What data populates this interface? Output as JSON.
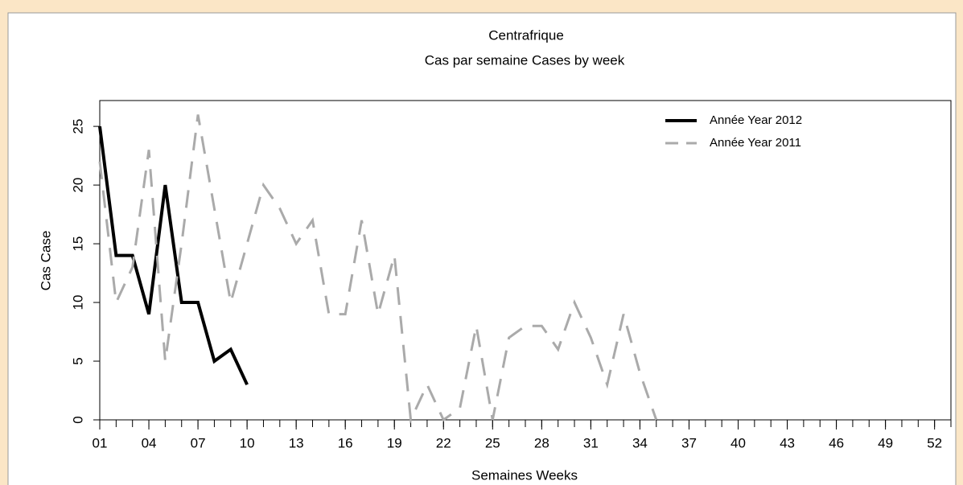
{
  "chart_data": {
    "type": "line",
    "title": "Centrafrique",
    "subtitle": "Cas par semaine Cases by week",
    "x_label": "Semaines Weeks",
    "y_label": "Cas Case",
    "x": [
      1,
      2,
      3,
      4,
      5,
      6,
      7,
      8,
      9,
      10,
      11,
      12,
      13,
      14,
      15,
      16,
      17,
      18,
      19,
      20,
      21,
      22,
      23,
      24,
      25,
      26,
      27,
      28,
      29,
      30,
      31,
      32,
      33,
      34,
      35
    ],
    "series": [
      {
        "name": "Année Year 2012",
        "color": "#000000",
        "dash": "solid",
        "values": [
          25,
          14,
          14,
          9,
          20,
          10,
          10,
          5,
          6,
          3,
          null,
          null,
          null,
          null,
          null,
          null,
          null,
          null,
          null,
          null,
          null,
          null,
          null,
          null,
          null,
          null,
          null,
          null,
          null,
          null,
          null,
          null,
          null,
          null,
          null
        ]
      },
      {
        "name": "Année Year 2011",
        "color": "#aaaaaa",
        "dash": "dashed",
        "values": [
          22,
          10,
          13,
          23,
          5,
          15,
          26,
          18,
          10,
          15,
          20,
          18,
          15,
          17,
          9,
          9,
          17,
          9,
          14,
          0,
          3,
          0,
          1,
          8,
          0,
          7,
          8,
          8,
          6,
          10,
          7,
          3,
          9,
          4,
          0
        ]
      }
    ],
    "xlim": [
      1,
      53
    ],
    "ylim": [
      0,
      27.2
    ],
    "xticks": [
      {
        "value": 1,
        "label": "01"
      },
      {
        "value": 4,
        "label": "04"
      },
      {
        "value": 7,
        "label": "07"
      },
      10,
      13,
      16,
      19,
      22,
      25,
      28,
      31,
      34,
      37,
      40,
      43,
      46,
      49,
      52
    ],
    "xminor_ticks": [
      1,
      2,
      3,
      4,
      5,
      6,
      7,
      8,
      9,
      10,
      11,
      12,
      13,
      14,
      15,
      16,
      17,
      18,
      19,
      20,
      21,
      22,
      23,
      24,
      25,
      26,
      27,
      28,
      29,
      30,
      31,
      32,
      33,
      34,
      35,
      36,
      37,
      38,
      39,
      40,
      41,
      42,
      43,
      44,
      45,
      46,
      47,
      48,
      49,
      50,
      51,
      52,
      53
    ],
    "yticks": [
      0,
      5,
      10,
      15,
      20,
      25
    ],
    "legend": "top-right"
  }
}
